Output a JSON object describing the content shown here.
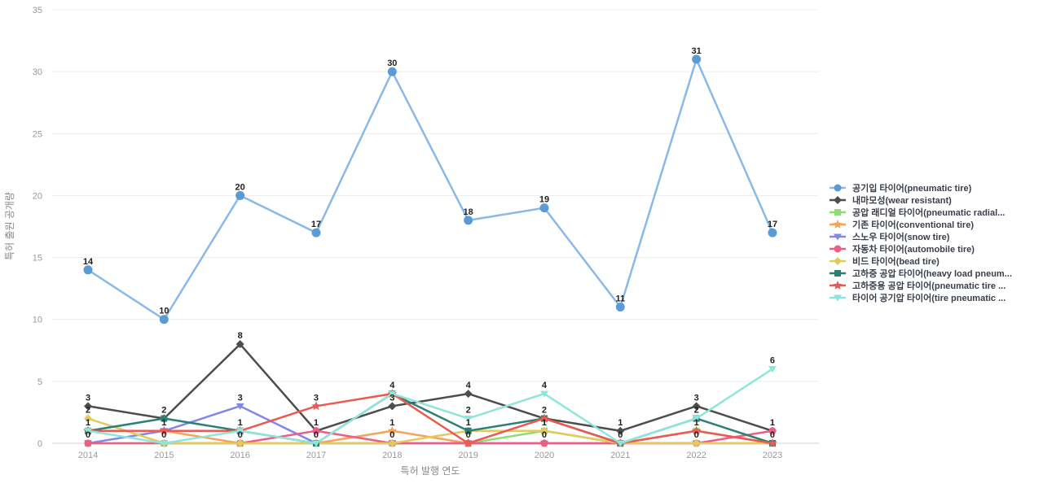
{
  "chart_data": {
    "type": "line",
    "title": "",
    "xlabel": "특허 발행 연도",
    "ylabel": "특허 출원 공개량",
    "categories": [
      "2014",
      "2015",
      "2016",
      "2017",
      "2018",
      "2019",
      "2020",
      "2021",
      "2022",
      "2023"
    ],
    "ylim": [
      0,
      35
    ],
    "y_ticks": [
      "0",
      "5",
      "10",
      "15",
      "20",
      "25",
      "30",
      "35"
    ],
    "grid": true,
    "legend_position": "right",
    "series": [
      {
        "name": "공기입 타이어(pneumatic tire)",
        "values": [
          14,
          10,
          20,
          17,
          30,
          18,
          19,
          11,
          31,
          17
        ],
        "color": "#5b9bd5",
        "line_color": "#8ab9e9",
        "marker": "circle",
        "marker_icon_name": "circle-marker-icon"
      },
      {
        "name": "내마모성(wear resistant)",
        "values": [
          3,
          2,
          8,
          1,
          3,
          4,
          2,
          1,
          3,
          1
        ],
        "color": "#4d4d4d",
        "line_color": "#4d4d4d",
        "marker": "diamond",
        "marker_icon_name": "diamond-marker-icon"
      },
      {
        "name": "공압 래디얼 타이어(pneumatic radial...",
        "values": [
          0,
          0,
          0,
          0,
          0,
          0,
          1,
          0,
          1,
          0
        ],
        "color": "#8edc74",
        "line_color": "#8edc74",
        "marker": "square",
        "marker_icon_name": "square-marker-icon"
      },
      {
        "name": "기존 타이어(conventional tire)",
        "values": [
          1,
          1,
          0,
          0,
          1,
          0,
          0,
          0,
          1,
          0
        ],
        "color": "#f2a35c",
        "line_color": "#f2a35c",
        "marker": "star",
        "marker_icon_name": "star-marker-icon"
      },
      {
        "name": "스노우 타이어(snow tire)",
        "values": [
          0,
          1,
          3,
          0,
          0,
          0,
          0,
          0,
          0,
          0
        ],
        "color": "#8286e9",
        "line_color": "#8286e9",
        "marker": "triangle-down",
        "marker_icon_name": "triangle-marker-icon"
      },
      {
        "name": "자동차 타이어(automobile tire)",
        "values": [
          0,
          0,
          0,
          1,
          0,
          0,
          0,
          0,
          0,
          1
        ],
        "color": "#ec5e87",
        "line_color": "#ec5e87",
        "marker": "circle",
        "marker_icon_name": "circle-marker-icon"
      },
      {
        "name": "비드 타이어(bead tire)",
        "values": [
          2,
          0,
          0,
          0,
          0,
          1,
          1,
          0,
          0,
          0
        ],
        "color": "#e2cb5d",
        "line_color": "#e2cb5d",
        "marker": "diamond",
        "marker_icon_name": "diamond-marker-icon"
      },
      {
        "name": "고하중 공압 타이어(heavy load pneum...",
        "values": [
          1,
          2,
          1,
          0,
          4,
          1,
          2,
          0,
          2,
          0
        ],
        "color": "#2e8077",
        "line_color": "#2e8077",
        "marker": "square",
        "marker_icon_name": "square-marker-icon"
      },
      {
        "name": "고하중용 공압 타이어(pneumatic tire ...",
        "values": [
          1,
          1,
          1,
          3,
          4,
          0,
          2,
          0,
          1,
          0
        ],
        "color": "#ea5a52",
        "line_color": "#ea5a52",
        "marker": "star",
        "marker_icon_name": "star-marker-icon"
      },
      {
        "name": "타이어 공기압 타이어(tire pneumatic ...",
        "values": [
          1,
          0,
          1,
          0,
          4,
          2,
          4,
          0,
          2,
          6
        ],
        "color": "#8fe5da",
        "line_color": "#8fe5da",
        "marker": "triangle-down",
        "marker_icon_name": "triangle-marker-icon"
      }
    ]
  },
  "colors": {
    "background": "#ffffff",
    "gridline": "#ececec",
    "baseline": "#ccd4e0",
    "tick_label": "#999999",
    "axis_title": "#8a8a8a",
    "point_label": "#1f1f1f",
    "legend_label": "#3a3f4b"
  }
}
